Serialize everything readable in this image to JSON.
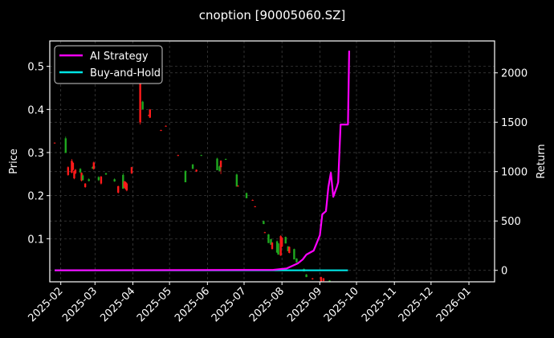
{
  "chart_data": {
    "type": "candlestick+line",
    "title": "cnoption [90005060.SZ]",
    "xlabel": "",
    "ylabel_left": "Price",
    "ylabel_right": "Return",
    "xlim": [
      "2025-01-23",
      "2026-01-22"
    ],
    "ylim_left": [
      0.0,
      0.559
    ],
    "ylim_right": [
      -116,
      2323
    ],
    "x_ticks": [
      "2025-02",
      "2025-03",
      "2025-04",
      "2025-05",
      "2025-06",
      "2025-07",
      "2025-08",
      "2025-09",
      "2025-10",
      "2025-11",
      "2025-12",
      "2026-01"
    ],
    "y_ticks_left": [
      "0.1",
      "0.2",
      "0.3",
      "0.4",
      "0.5"
    ],
    "y_ticks_right": [
      "0",
      "500",
      "1000",
      "1500",
      "2000"
    ],
    "grid": true,
    "legend_position": "top-left",
    "colors": {
      "up": "#ff1a1a",
      "down": "#1fa81f",
      "ai": "#ff00ff",
      "bh": "#00e5e5",
      "background": "#000000"
    },
    "candles_columns": [
      "date",
      "open",
      "high",
      "low",
      "close"
    ],
    "candles": [
      [
        "2025-01-27",
        0.322,
        0.323,
        0.321,
        0.323
      ],
      [
        "2025-02-05",
        0.333,
        0.337,
        0.299,
        0.299
      ],
      [
        "2025-02-07",
        0.248,
        0.268,
        0.246,
        0.266
      ],
      [
        "2025-02-10",
        0.253,
        0.285,
        0.252,
        0.281
      ],
      [
        "2025-02-11",
        0.26,
        0.278,
        0.258,
        0.276
      ],
      [
        "2025-02-12",
        0.24,
        0.258,
        0.238,
        0.257
      ],
      [
        "2025-02-13",
        0.252,
        0.262,
        0.25,
        0.26
      ],
      [
        "2025-02-17",
        0.262,
        0.264,
        0.252,
        0.254
      ],
      [
        "2025-02-18",
        0.235,
        0.254,
        0.233,
        0.253
      ],
      [
        "2025-02-19",
        0.247,
        0.249,
        0.235,
        0.236
      ],
      [
        "2025-02-21",
        0.22,
        0.229,
        0.218,
        0.228
      ],
      [
        "2025-02-24",
        0.238,
        0.24,
        0.233,
        0.234
      ],
      [
        "2025-02-27",
        0.266,
        0.268,
        0.262,
        0.263
      ],
      [
        "2025-02-28",
        0.262,
        0.279,
        0.26,
        0.277
      ],
      [
        "2025-03-04",
        0.243,
        0.245,
        0.234,
        0.236
      ],
      [
        "2025-03-06",
        0.228,
        0.246,
        0.226,
        0.244
      ],
      [
        "2025-03-10",
        0.252,
        0.253,
        0.248,
        0.249
      ],
      [
        "2025-03-17",
        0.238,
        0.24,
        0.232,
        0.233
      ],
      [
        "2025-03-20",
        0.207,
        0.223,
        0.205,
        0.222
      ],
      [
        "2025-03-24",
        0.248,
        0.252,
        0.216,
        0.216
      ],
      [
        "2025-03-25",
        0.22,
        0.234,
        0.218,
        0.233
      ],
      [
        "2025-03-26",
        0.216,
        0.233,
        0.214,
        0.231
      ],
      [
        "2025-03-27",
        0.212,
        0.23,
        0.21,
        0.228
      ],
      [
        "2025-03-31",
        0.252,
        0.267,
        0.25,
        0.266
      ],
      [
        "2025-04-07",
        0.37,
        0.5,
        0.365,
        0.48
      ],
      [
        "2025-04-09",
        0.418,
        0.42,
        0.4,
        0.4
      ],
      [
        "2025-04-14",
        0.386,
        0.388,
        0.385,
        0.387
      ],
      [
        "2025-04-15",
        0.381,
        0.401,
        0.38,
        0.4
      ],
      [
        "2025-04-24",
        0.351,
        0.353,
        0.35,
        0.352
      ],
      [
        "2025-04-28",
        0.361,
        0.363,
        0.36,
        0.362
      ],
      [
        "2025-05-08",
        0.293,
        0.295,
        0.292,
        0.294
      ],
      [
        "2025-05-14",
        0.257,
        0.259,
        0.231,
        0.231
      ],
      [
        "2025-05-20",
        0.272,
        0.274,
        0.262,
        0.262
      ],
      [
        "2025-05-23",
        0.256,
        0.261,
        0.255,
        0.26
      ],
      [
        "2025-05-27",
        0.294,
        0.295,
        0.293,
        0.293
      ],
      [
        "2025-06-09",
        0.286,
        0.288,
        0.259,
        0.259
      ],
      [
        "2025-06-11",
        0.268,
        0.27,
        0.257,
        0.257
      ],
      [
        "2025-06-12",
        0.266,
        0.282,
        0.25,
        0.281
      ],
      [
        "2025-06-16",
        0.285,
        0.286,
        0.284,
        0.284
      ],
      [
        "2025-06-25",
        0.249,
        0.251,
        0.221,
        0.221
      ],
      [
        "2025-06-26",
        0.222,
        0.224,
        0.221,
        0.223
      ],
      [
        "2025-07-03",
        0.206,
        0.207,
        0.194,
        0.194
      ],
      [
        "2025-07-08",
        0.189,
        0.191,
        0.188,
        0.19
      ],
      [
        "2025-07-10",
        0.175,
        0.176,
        0.174,
        0.175
      ],
      [
        "2025-07-17",
        0.141,
        0.142,
        0.134,
        0.134
      ],
      [
        "2025-07-18",
        0.114,
        0.116,
        0.113,
        0.115
      ],
      [
        "2025-07-21",
        0.11,
        0.111,
        0.09,
        0.09
      ],
      [
        "2025-07-23",
        0.099,
        0.1,
        0.086,
        0.086
      ],
      [
        "2025-07-24",
        0.076,
        0.092,
        0.075,
        0.091
      ],
      [
        "2025-07-28",
        0.094,
        0.096,
        0.067,
        0.068
      ],
      [
        "2025-07-29",
        0.089,
        0.09,
        0.063,
        0.063
      ],
      [
        "2025-07-31",
        0.061,
        0.108,
        0.06,
        0.106
      ],
      [
        "2025-08-01",
        0.082,
        0.104,
        0.08,
        0.102
      ],
      [
        "2025-08-04",
        0.104,
        0.105,
        0.089,
        0.089
      ],
      [
        "2025-08-06",
        0.082,
        0.083,
        0.071,
        0.071
      ],
      [
        "2025-08-07",
        0.067,
        0.082,
        0.066,
        0.081
      ],
      [
        "2025-08-11",
        0.076,
        0.077,
        0.052,
        0.052
      ],
      [
        "2025-08-13",
        0.054,
        0.055,
        0.045,
        0.045
      ],
      [
        "2025-08-19",
        0.03,
        0.031,
        0.024,
        0.024
      ],
      [
        "2025-08-21",
        0.017,
        0.018,
        0.011,
        0.011
      ],
      [
        "2025-08-26",
        0.006,
        0.009,
        0.005,
        0.008
      ],
      [
        "2025-09-02",
        0.001,
        0.012,
        0.001,
        0.011
      ],
      [
        "2025-09-04",
        0.002,
        0.009,
        0.001,
        0.008
      ],
      [
        "2025-09-09",
        0.003,
        0.004,
        0.001,
        0.001
      ]
    ],
    "series": [
      {
        "name": "AI Strategy",
        "axis": "right",
        "x": [
          "2025-01-27",
          "2025-07-25",
          "2025-08-05",
          "2025-08-14",
          "2025-08-18",
          "2025-08-21",
          "2025-08-27",
          "2025-09-01",
          "2025-09-03",
          "2025-09-06",
          "2025-09-08",
          "2025-09-10",
          "2025-09-12",
          "2025-09-15",
          "2025-09-16",
          "2025-09-18",
          "2025-09-24",
          "2025-09-25"
        ],
        "values": [
          0,
          5,
          20,
          71,
          110,
          160,
          200,
          355,
          567,
          600,
          843,
          989,
          745,
          850,
          892,
          1477,
          1477,
          2225
        ]
      },
      {
        "name": "Buy-and-Hold",
        "axis": "right",
        "x": [
          "2025-01-27",
          "2025-09-24"
        ],
        "values": [
          0,
          0
        ]
      }
    ]
  }
}
